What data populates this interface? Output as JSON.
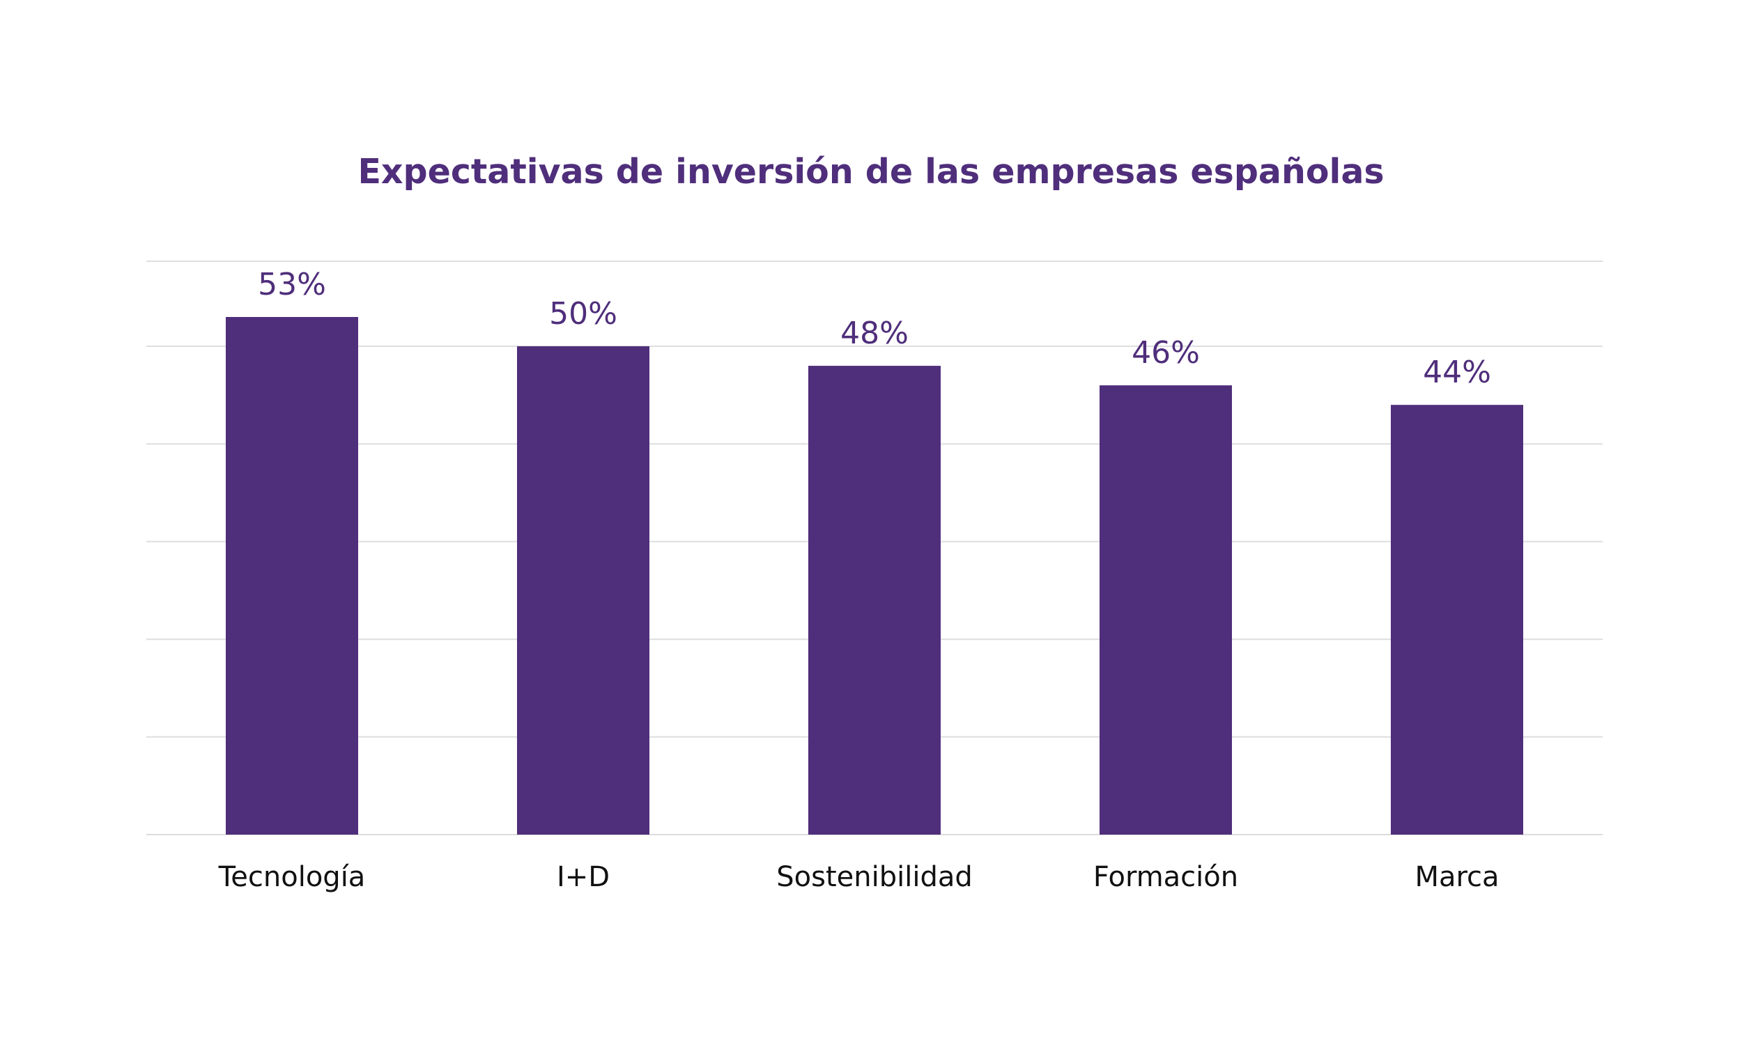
{
  "chart_data": {
    "type": "bar",
    "title": "Expectativas de inversión de las empresas españolas",
    "categories": [
      "Tecnología",
      "I+D",
      "Sostenibilidad",
      "Formación",
      "Marca"
    ],
    "values": [
      53,
      50,
      48,
      46,
      44
    ],
    "value_labels": [
      "53%",
      "50%",
      "48%",
      "46%",
      "44%"
    ],
    "xlabel": "",
    "ylabel": "",
    "ylim": [
      0,
      60
    ],
    "grid": true,
    "legend": "none",
    "colors": {
      "bar": "#4f2e7b",
      "title": "#4f2e7b",
      "value_label": "#4f2e7b",
      "category_label": "#111111",
      "grid": "#dedede"
    }
  }
}
